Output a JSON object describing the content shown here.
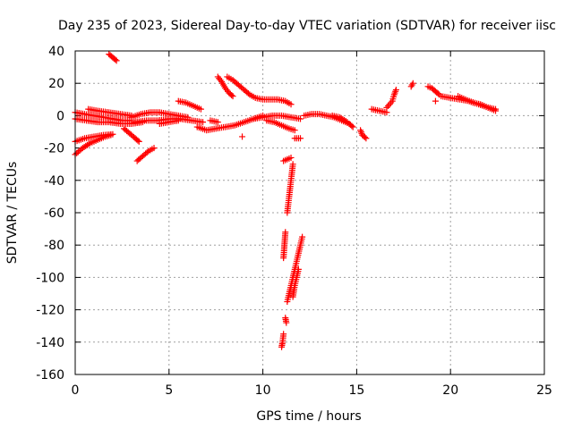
{
  "chart_data": {
    "type": "scatter",
    "title": "Day 235 of 2023, Sidereal Day-to-day VTEC variation (SDTVAR) for receiver iisc",
    "xlabel": "GPS time / hours",
    "ylabel": "SDTVAR / TECUs",
    "xlim": [
      0,
      25
    ],
    "ylim": [
      -160,
      40
    ],
    "xticks": [
      "0",
      "5",
      "10",
      "15",
      "20",
      "25"
    ],
    "yticks": [
      "40",
      "20",
      "0",
      "-20",
      "-40",
      "-60",
      "-80",
      "-100",
      "-120",
      "-140",
      "-160"
    ],
    "xtick_values": [
      0,
      5,
      10,
      15,
      20,
      25
    ],
    "ytick_values": [
      40,
      20,
      0,
      -20,
      -40,
      -60,
      -80,
      -100,
      -120,
      -140,
      -160
    ],
    "grid": true,
    "marker": "+",
    "color": "#ff0000",
    "series": [
      {
        "name": "tracks",
        "segments": [
          [
            [
              0.0,
              2
            ],
            [
              0.5,
              1
            ],
            [
              1.0,
              0
            ],
            [
              1.5,
              -1
            ],
            [
              2.0,
              -2
            ],
            [
              2.5,
              -3
            ],
            [
              3.0,
              -3
            ]
          ],
          [
            [
              0.0,
              -2
            ],
            [
              0.6,
              -3
            ],
            [
              1.2,
              -4
            ],
            [
              1.8,
              -4
            ],
            [
              2.4,
              -5
            ],
            [
              3.0,
              -5
            ],
            [
              3.6,
              -4
            ]
          ],
          [
            [
              0.0,
              -16
            ],
            [
              0.5,
              -14
            ],
            [
              1.0,
              -13
            ],
            [
              1.5,
              -12
            ],
            [
              2.0,
              -11.5
            ]
          ],
          [
            [
              0.0,
              -24
            ],
            [
              0.4,
              -20
            ],
            [
              0.8,
              -17
            ],
            [
              1.2,
              -15
            ],
            [
              1.6,
              -13
            ],
            [
              1.9,
              -12
            ]
          ],
          [
            [
              1.8,
              38
            ],
            [
              2.0,
              36
            ],
            [
              2.2,
              34
            ]
          ],
          [
            [
              0.7,
              4
            ],
            [
              1.2,
              3
            ],
            [
              1.8,
              2
            ],
            [
              2.4,
              1
            ],
            [
              3.0,
              0
            ]
          ],
          [
            [
              2.6,
              -8
            ],
            [
              2.9,
              -11
            ],
            [
              3.2,
              -14
            ],
            [
              3.4,
              -16
            ]
          ],
          [
            [
              3.3,
              -28
            ],
            [
              3.6,
              -25
            ],
            [
              3.9,
              -22
            ],
            [
              4.2,
              -20
            ]
          ],
          [
            [
              3.0,
              -1
            ],
            [
              3.5,
              1
            ],
            [
              4.0,
              2
            ],
            [
              4.5,
              2
            ],
            [
              5.0,
              1
            ],
            [
              5.5,
              0
            ],
            [
              6.0,
              -1
            ]
          ],
          [
            [
              3.2,
              -4
            ],
            [
              3.8,
              -3
            ],
            [
              4.4,
              -3
            ],
            [
              5.0,
              -2
            ],
            [
              5.6,
              -2
            ],
            [
              6.2,
              -3
            ],
            [
              6.8,
              -4
            ]
          ],
          [
            [
              4.5,
              -5
            ],
            [
              5.0,
              -4
            ],
            [
              5.5,
              -3
            ]
          ],
          [
            [
              5.5,
              9
            ],
            [
              5.9,
              8
            ],
            [
              6.3,
              6
            ],
            [
              6.7,
              4
            ]
          ],
          [
            [
              6.5,
              -7
            ],
            [
              7.0,
              -9
            ],
            [
              7.5,
              -8
            ],
            [
              8.0,
              -7
            ],
            [
              8.5,
              -6
            ],
            [
              9.0,
              -4
            ],
            [
              9.5,
              -2
            ],
            [
              10.0,
              0
            ]
          ],
          [
            [
              7.2,
              -3
            ],
            [
              7.6,
              -4
            ]
          ],
          [
            [
              7.6,
              24
            ],
            [
              7.8,
              21
            ],
            [
              8.0,
              17
            ],
            [
              8.2,
              14
            ],
            [
              8.4,
              12
            ]
          ],
          [
            [
              8.1,
              24
            ],
            [
              8.4,
              22
            ],
            [
              8.7,
              19
            ],
            [
              9.0,
              16
            ],
            [
              9.3,
              13
            ],
            [
              9.6,
              11
            ],
            [
              10.0,
              10
            ],
            [
              10.4,
              10
            ],
            [
              10.8,
              10
            ],
            [
              11.2,
              9
            ],
            [
              11.5,
              7
            ]
          ],
          [
            [
              8.9,
              -13
            ]
          ],
          [
            [
              9.5,
              -2
            ],
            [
              10.0,
              -1
            ],
            [
              10.5,
              0
            ],
            [
              11.0,
              0
            ],
            [
              11.5,
              -1
            ],
            [
              12.0,
              -2
            ]
          ],
          [
            [
              10.2,
              -3
            ],
            [
              10.6,
              -4
            ],
            [
              11.0,
              -6
            ],
            [
              11.4,
              -8
            ],
            [
              11.7,
              -9
            ]
          ],
          [
            [
              11.7,
              -14
            ],
            [
              12.0,
              -14
            ]
          ],
          [
            [
              11.1,
              -28
            ],
            [
              11.3,
              -27
            ],
            [
              11.5,
              -26
            ]
          ],
          [
            [
              11.6,
              -30
            ],
            [
              11.5,
              -40
            ],
            [
              11.4,
              -50
            ],
            [
              11.3,
              -60
            ]
          ],
          [
            [
              11.2,
              -72
            ],
            [
              11.15,
              -80
            ],
            [
              11.1,
              -88
            ]
          ],
          [
            [
              12.1,
              -75
            ],
            [
              11.9,
              -85
            ],
            [
              11.7,
              -95
            ],
            [
              11.5,
              -105
            ],
            [
              11.3,
              -115
            ]
          ],
          [
            [
              11.9,
              -95
            ],
            [
              11.7,
              -105
            ],
            [
              11.6,
              -112
            ]
          ],
          [
            [
              11.2,
              -125
            ],
            [
              11.25,
              -128
            ]
          ],
          [
            [
              11.1,
              -135
            ],
            [
              11.05,
              -140
            ],
            [
              11.0,
              -143
            ]
          ],
          [
            [
              12.2,
              0
            ],
            [
              12.6,
              1
            ],
            [
              13.0,
              1
            ],
            [
              13.4,
              0
            ],
            [
              13.8,
              -1
            ],
            [
              14.2,
              -3
            ],
            [
              14.6,
              -5
            ],
            [
              14.8,
              -7
            ]
          ],
          [
            [
              13.7,
              0
            ],
            [
              14.1,
              -1
            ],
            [
              14.5,
              -4
            ]
          ],
          [
            [
              15.2,
              -9
            ],
            [
              15.3,
              -12
            ],
            [
              15.5,
              -14
            ]
          ],
          [
            [
              15.8,
              4
            ],
            [
              16.2,
              3
            ],
            [
              16.6,
              2
            ]
          ],
          [
            [
              16.6,
              5
            ],
            [
              16.9,
              9
            ],
            [
              17.0,
              13
            ],
            [
              17.1,
              16
            ]
          ],
          [
            [
              17.9,
              18
            ],
            [
              18.0,
              20
            ]
          ],
          [
            [
              18.8,
              18
            ],
            [
              19.0,
              17
            ],
            [
              19.2,
              15
            ],
            [
              19.4,
              13
            ]
          ],
          [
            [
              19.2,
              9
            ]
          ],
          [
            [
              19.5,
              12
            ],
            [
              20.0,
              11
            ],
            [
              20.5,
              10
            ],
            [
              21.0,
              9
            ],
            [
              21.5,
              7
            ],
            [
              22.0,
              5
            ],
            [
              22.4,
              3
            ]
          ],
          [
            [
              20.4,
              12
            ],
            [
              20.8,
              10
            ],
            [
              21.2,
              8
            ],
            [
              21.6,
              7
            ],
            [
              22.0,
              5
            ],
            [
              22.4,
              4
            ]
          ]
        ]
      }
    ]
  }
}
